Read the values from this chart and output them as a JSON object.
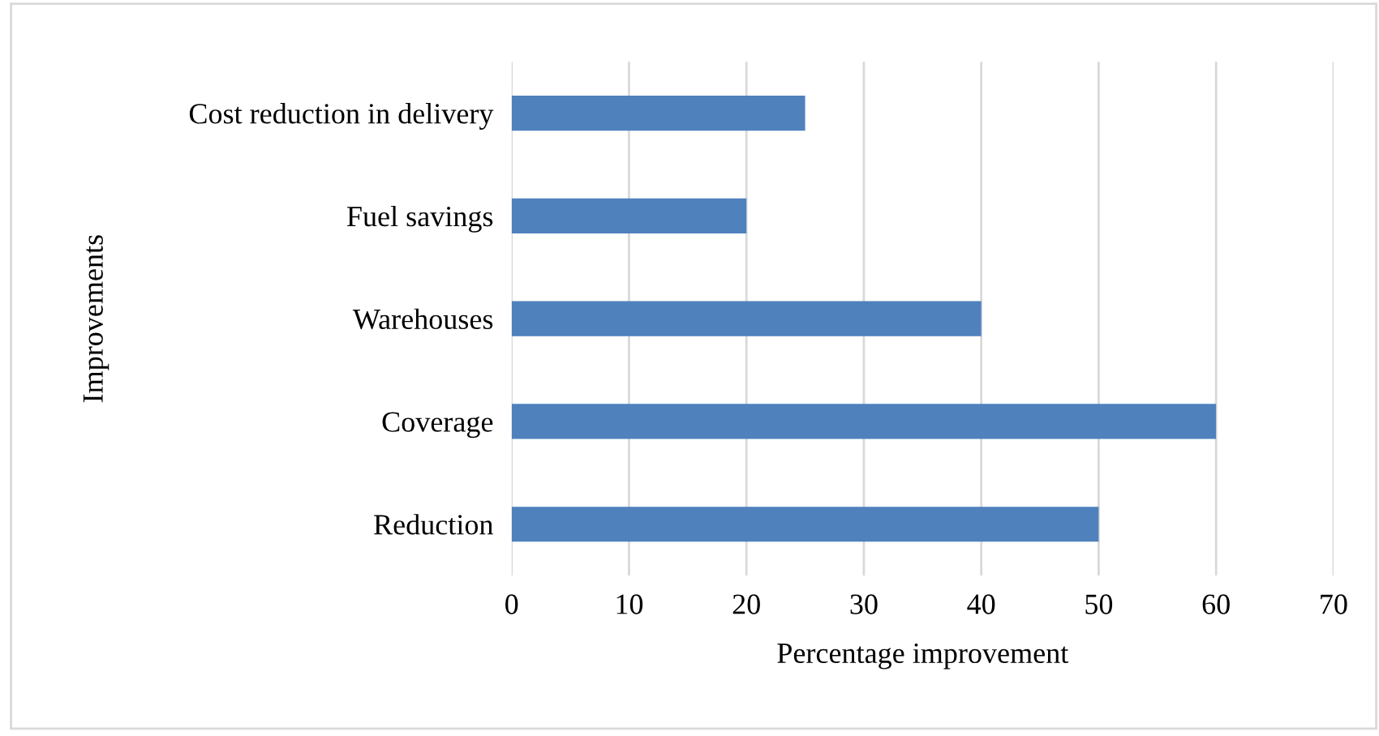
{
  "chart_data": {
    "type": "bar",
    "orientation": "horizontal",
    "categories": [
      "Cost reduction in delivery",
      "Fuel savings",
      "Warehouses",
      "Coverage",
      "Reduction"
    ],
    "values": [
      25,
      20,
      40,
      60,
      50
    ],
    "color": "#4f81bd",
    "xlabel": "Percentage improvement",
    "ylabel": "Improvements",
    "xlim": [
      0,
      70
    ],
    "xticks": [
      0,
      10,
      20,
      30,
      40,
      50,
      60,
      70
    ],
    "grid": "x",
    "legend": false
  }
}
